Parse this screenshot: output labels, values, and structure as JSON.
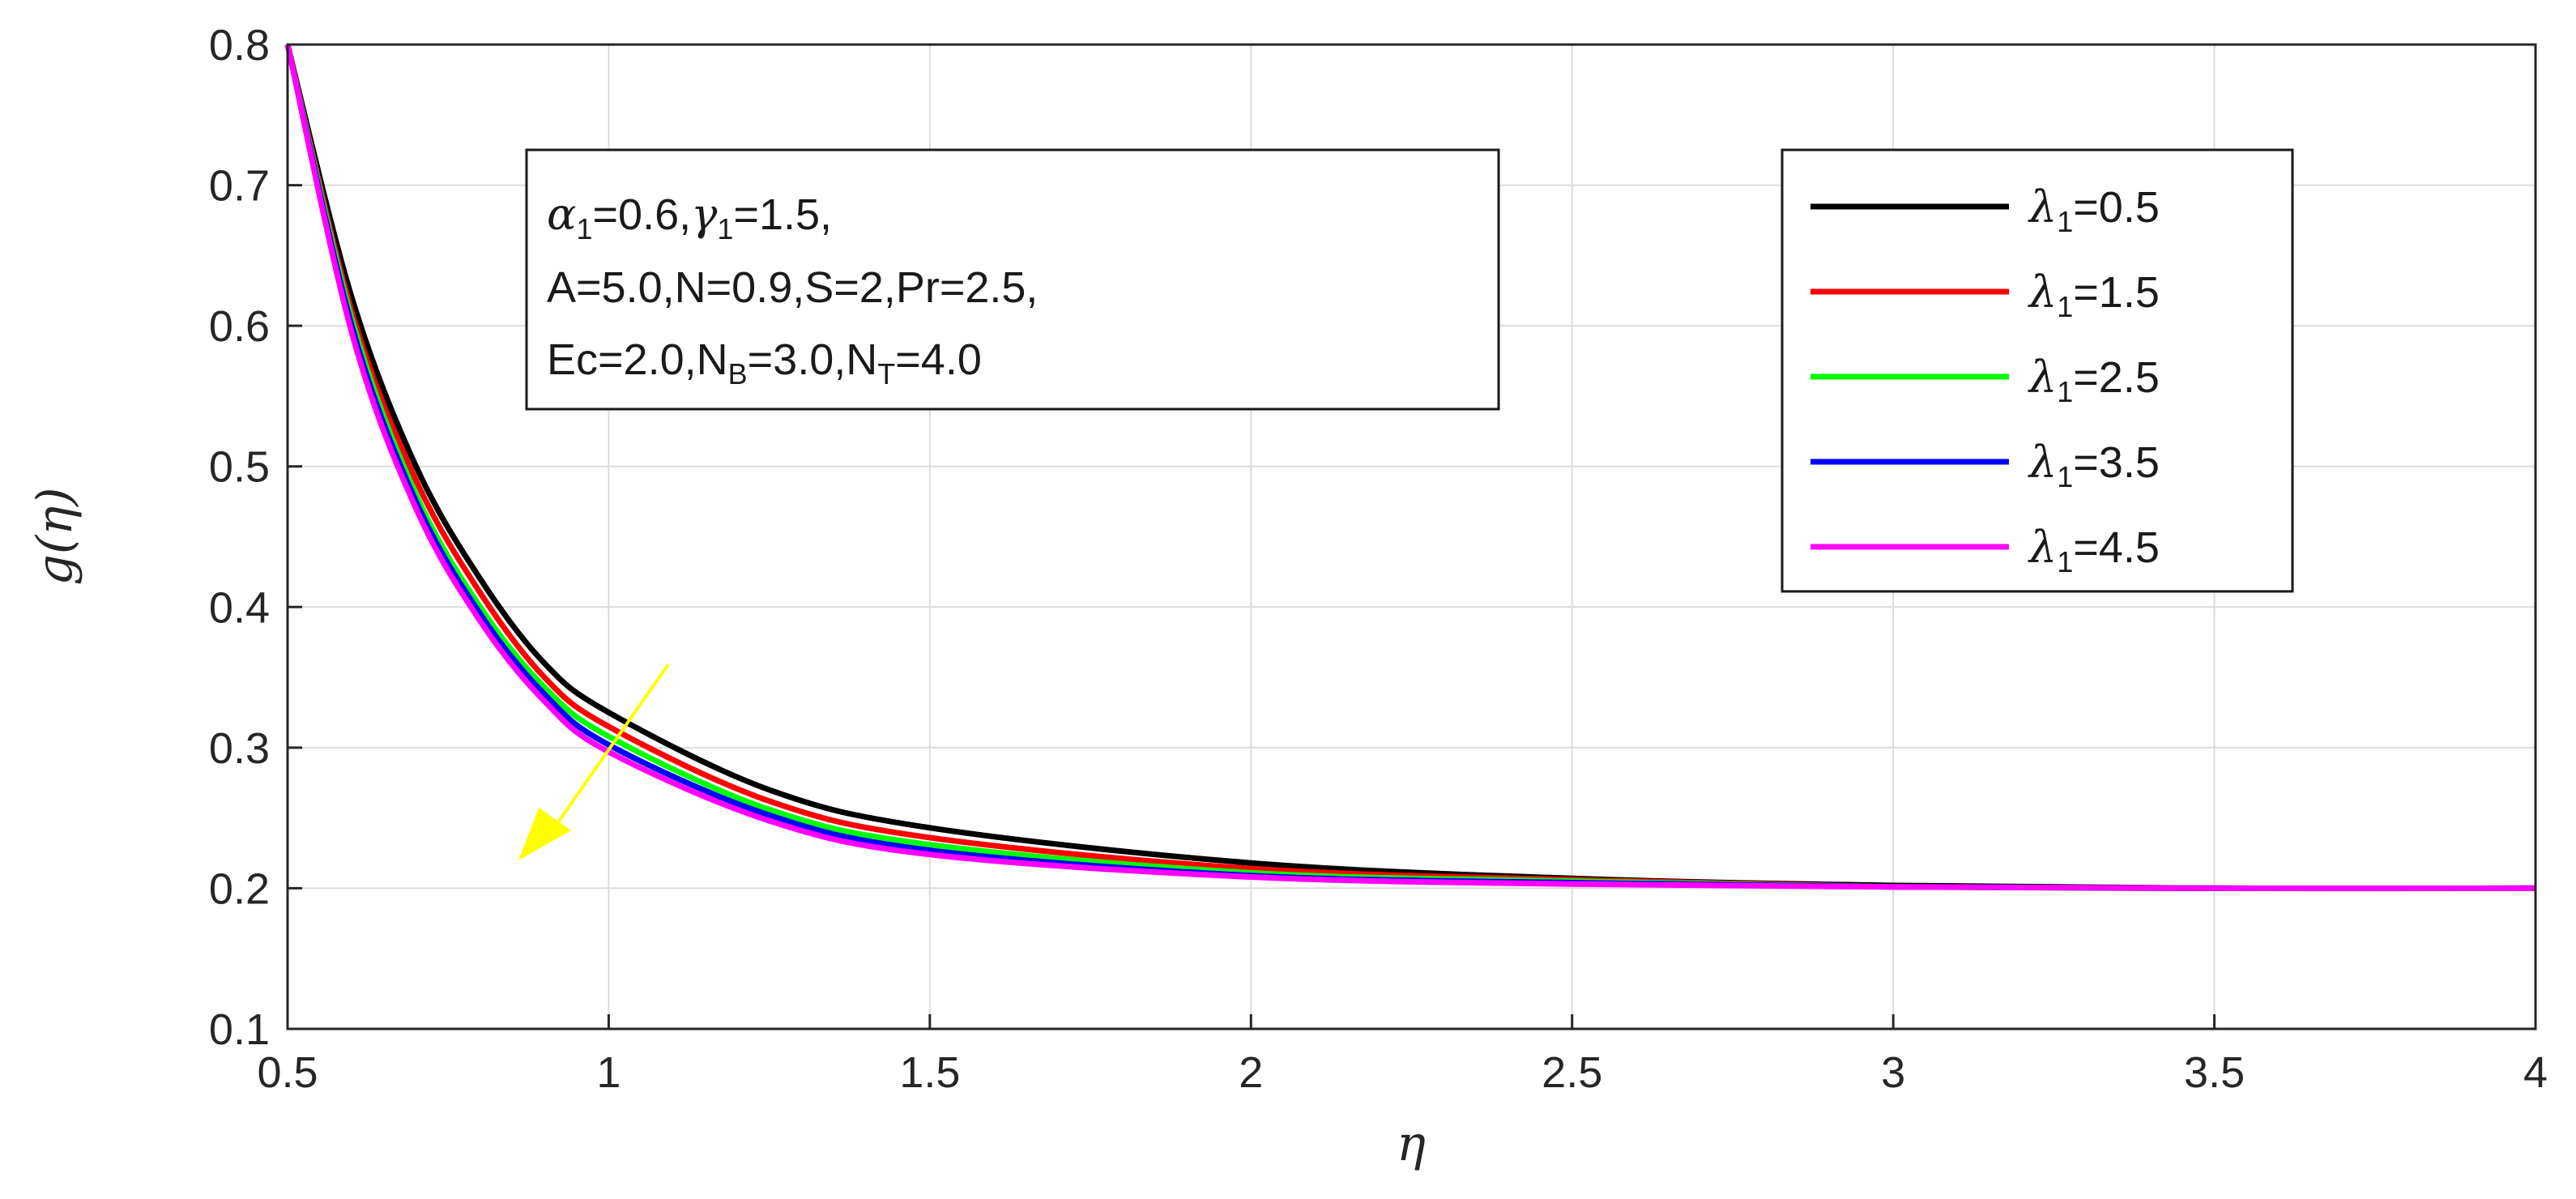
{
  "chart_data": {
    "type": "line",
    "xlabel": "η",
    "ylabel": "g(η)",
    "xlim": [
      0.5,
      4
    ],
    "ylim": [
      0.1,
      0.8
    ],
    "xticks": [
      "0.5",
      "1",
      "1.5",
      "2",
      "2.5",
      "3",
      "3.5",
      "4"
    ],
    "yticks": [
      "0.1",
      "0.2",
      "0.3",
      "0.4",
      "0.5",
      "0.6",
      "0.7",
      "0.8"
    ],
    "grid": true,
    "legend_position": "top-right",
    "x": [
      0.5,
      0.6,
      0.7,
      0.8,
      0.9,
      1.0,
      1.25,
      1.5,
      2.0,
      2.5,
      3.0,
      3.5,
      4.0
    ],
    "series": [
      {
        "name": "λ1=0.5",
        "color": "#000000",
        "values": [
          0.8,
          0.62,
          0.5,
          0.42,
          0.36,
          0.325,
          0.27,
          0.243,
          0.218,
          0.207,
          0.202,
          0.2,
          0.2
        ]
      },
      {
        "name": "λ1=1.5",
        "color": "#ff0000",
        "values": [
          0.8,
          0.61,
          0.49,
          0.41,
          0.35,
          0.315,
          0.262,
          0.236,
          0.214,
          0.206,
          0.201,
          0.2,
          0.2
        ]
      },
      {
        "name": "λ1=2.5",
        "color": "#00ff00",
        "values": [
          0.8,
          0.605,
          0.48,
          0.4,
          0.343,
          0.308,
          0.256,
          0.231,
          0.211,
          0.205,
          0.201,
          0.2,
          0.2
        ]
      },
      {
        "name": "λ1=3.5",
        "color": "#0000ff",
        "values": [
          0.8,
          0.6,
          0.475,
          0.395,
          0.338,
          0.302,
          0.252,
          0.227,
          0.209,
          0.204,
          0.201,
          0.2,
          0.2
        ]
      },
      {
        "name": "λ1=4.5",
        "color": "#ff00ff",
        "values": [
          0.8,
          0.595,
          0.47,
          0.39,
          0.333,
          0.297,
          0.248,
          0.224,
          0.208,
          0.203,
          0.201,
          0.2,
          0.2
        ]
      }
    ],
    "legend": [
      {
        "sym": "λ",
        "sub": "1",
        "text": "=0.5"
      },
      {
        "sym": "λ",
        "sub": "1",
        "text": "=1.5"
      },
      {
        "sym": "λ",
        "sub": "1",
        "text": "=2.5"
      },
      {
        "sym": "λ",
        "sub": "1",
        "text": "=3.5"
      },
      {
        "sym": "λ",
        "sub": "1",
        "text": "=4.5"
      }
    ],
    "annotation": {
      "line1": {
        "a_sym": "α",
        "a_sub": "1",
        "a_val": "=0.6,",
        "g_sym": "γ",
        "g_sub": "1",
        "g_val": "=1.5,"
      },
      "line2": "A=5.0,N=0.9,S=2,Pr=2.5,",
      "line3": {
        "p1": "Ec=2.0,N",
        "s1": "B",
        "p2": "=3.0,N",
        "s2": "T",
        "p3": "=4.0"
      },
      "arrow_color": "#ffff00"
    }
  }
}
